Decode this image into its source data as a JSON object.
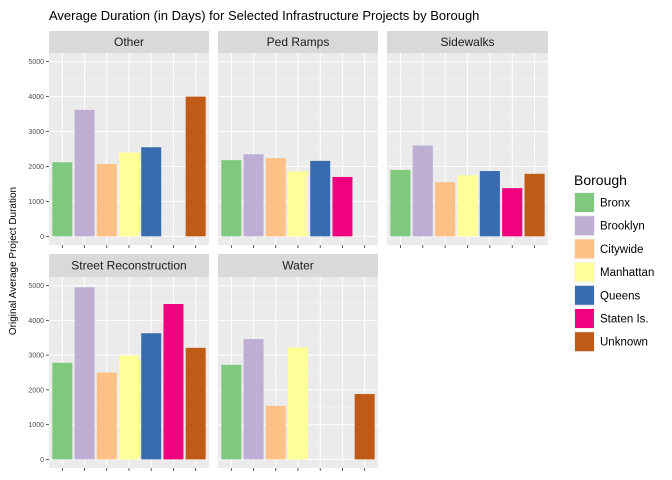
{
  "chart_data": {
    "type": "bar",
    "title": "Average Duration (in Days) for Selected Infrastructure Projects by Borough",
    "xlabel": "",
    "ylabel": "Original Average Project Duration",
    "ylim": [
      0,
      5000
    ],
    "yticks": [
      0,
      1000,
      2000,
      3000,
      4000,
      5000
    ],
    "grid": true,
    "legend_position": "right",
    "legend_title": "Borough",
    "categories": [
      "Bronx",
      "Brooklyn",
      "Citywide",
      "Manhattan",
      "Queens",
      "Staten Is.",
      "Unknown"
    ],
    "colors": [
      "#7fc97f",
      "#beaed4",
      "#fdc086",
      "#ffff99",
      "#386cb0",
      "#f0027f",
      "#bf5b17"
    ],
    "facets": [
      {
        "name": "Other",
        "values": [
          2120,
          3620,
          2070,
          2400,
          2550,
          null,
          4000
        ]
      },
      {
        "name": "Ped Ramps",
        "values": [
          2180,
          2350,
          2240,
          1860,
          2160,
          1700,
          null
        ]
      },
      {
        "name": "Sidewalks",
        "values": [
          1900,
          2600,
          1550,
          1750,
          1870,
          1380,
          1790
        ]
      },
      {
        "name": "Street Reconstruction",
        "values": [
          2780,
          4950,
          2500,
          2990,
          3630,
          4470,
          3210
        ]
      },
      {
        "name": "Water",
        "values": [
          2720,
          3460,
          1540,
          3220,
          null,
          null,
          1880
        ]
      }
    ]
  }
}
